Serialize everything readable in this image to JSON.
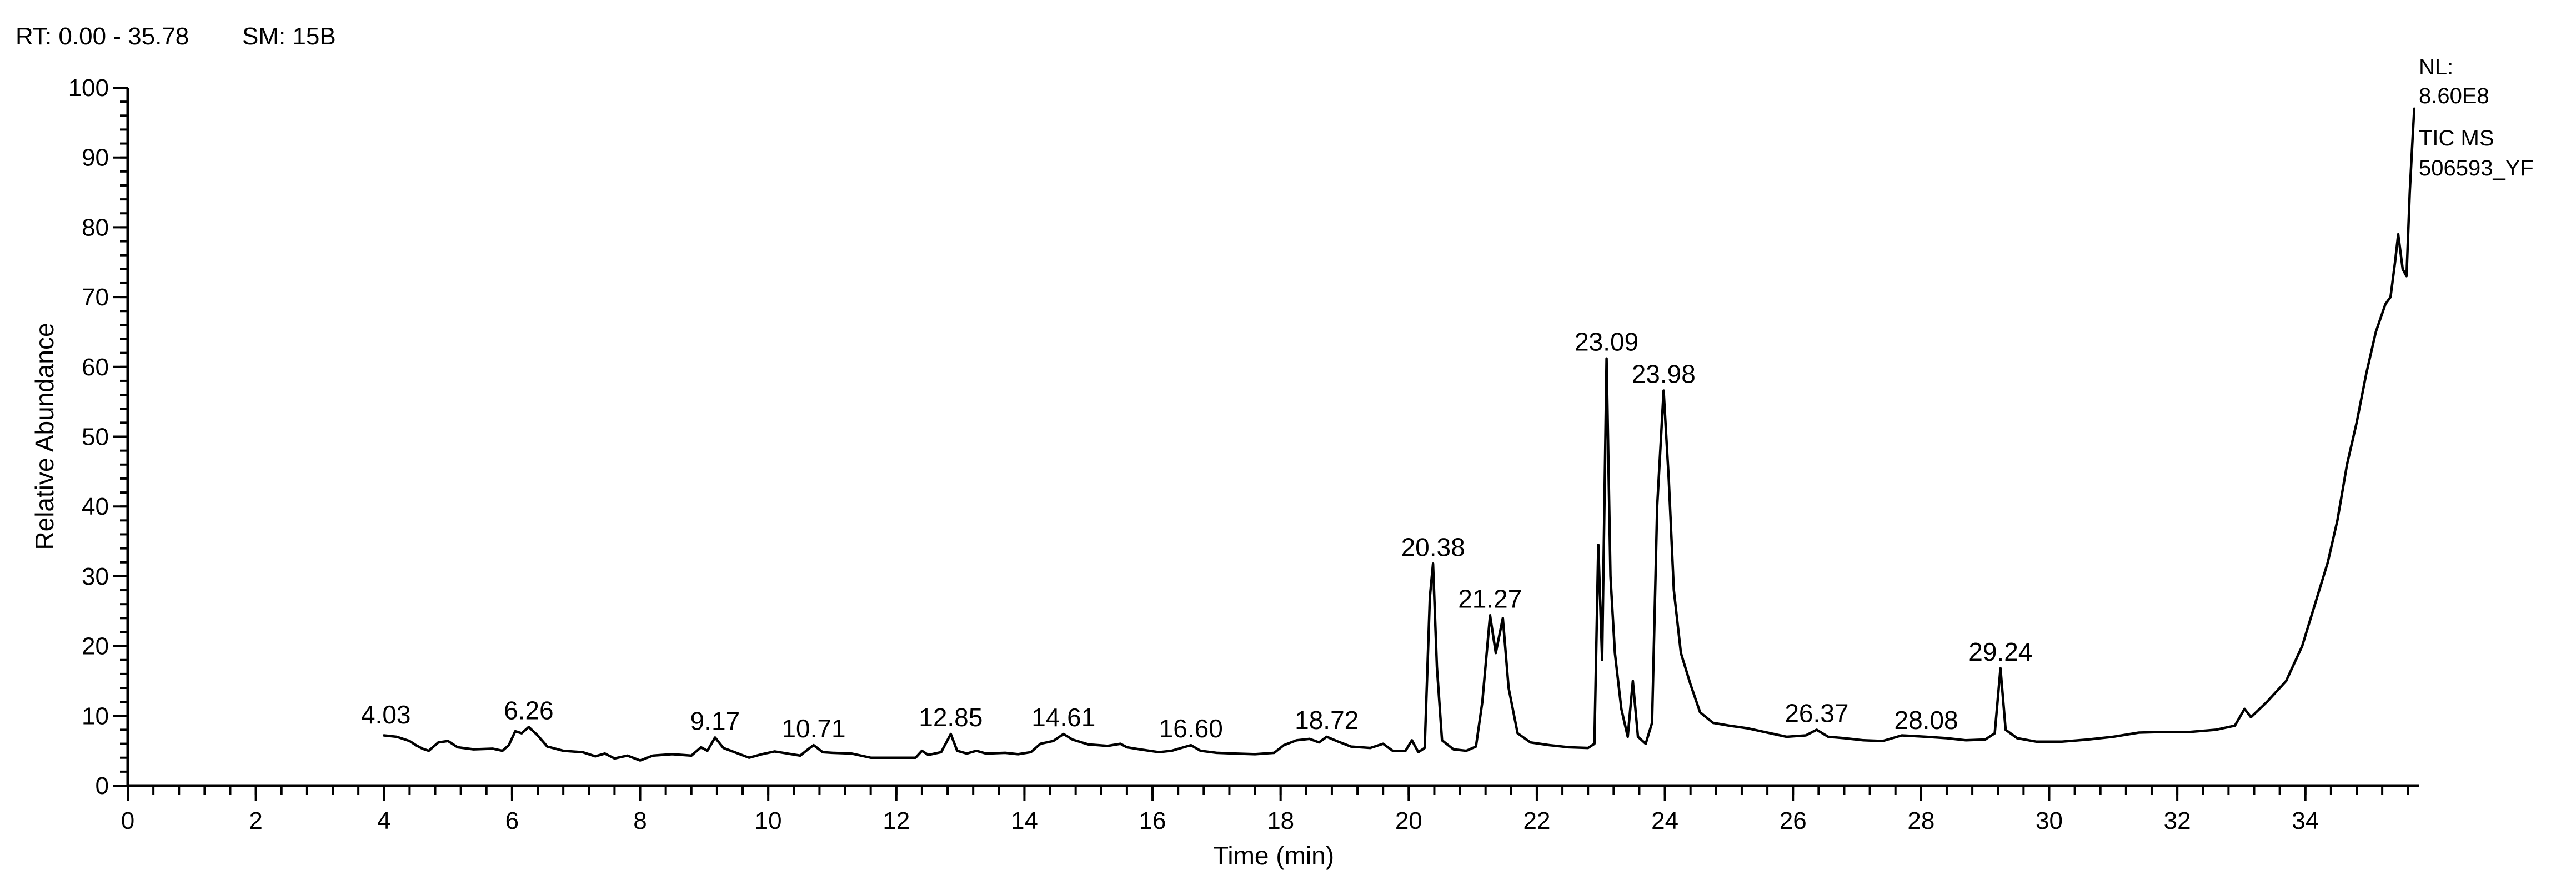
{
  "header": {
    "rt_range": "RT: 0.00 - 35.78",
    "smoothing": "SM: 15B"
  },
  "side_notes": [
    "NL:",
    "8.60E8",
    "TIC MS",
    "506593_YF"
  ],
  "chart_data": {
    "type": "line",
    "title": "",
    "xlabel": "Time (min)",
    "ylabel": "Relative Abundance",
    "xlim": [
      0,
      35.78
    ],
    "ylim": [
      0,
      100
    ],
    "x_major_ticks": [
      0,
      2,
      4,
      6,
      8,
      10,
      12,
      14,
      16,
      18,
      20,
      22,
      24,
      26,
      28,
      30,
      32,
      34
    ],
    "x_minor_step": 0.4,
    "y_major_ticks": [
      0,
      10,
      20,
      30,
      40,
      50,
      60,
      70,
      80,
      90,
      100
    ],
    "y_minor_step": 2,
    "grid": false,
    "legend": "none",
    "peak_labels": [
      {
        "text": "4.03",
        "x": 4.03,
        "y": 7.8
      },
      {
        "text": "6.26",
        "x": 6.26,
        "y": 8.4
      },
      {
        "text": "9.17",
        "x": 9.17,
        "y": 6.9
      },
      {
        "text": "10.71",
        "x": 10.71,
        "y": 5.8
      },
      {
        "text": "12.85",
        "x": 12.85,
        "y": 7.4
      },
      {
        "text": "14.61",
        "x": 14.61,
        "y": 7.4
      },
      {
        "text": "16.60",
        "x": 16.6,
        "y": 5.8
      },
      {
        "text": "18.72",
        "x": 18.72,
        "y": 7.0
      },
      {
        "text": "20.38",
        "x": 20.38,
        "y": 31.8
      },
      {
        "text": "21.27",
        "x": 21.27,
        "y": 24.4
      },
      {
        "text": "23.09",
        "x": 23.09,
        "y": 61.2
      },
      {
        "text": "23.98",
        "x": 23.98,
        "y": 56.6
      },
      {
        "text": "26.37",
        "x": 26.37,
        "y": 8.0
      },
      {
        "text": "28.08",
        "x": 28.08,
        "y": 7.0
      },
      {
        "text": "29.24",
        "x": 29.24,
        "y": 16.8
      }
    ],
    "series": [
      {
        "points": [
          [
            4.0,
            7.2
          ],
          [
            4.2,
            7.0
          ],
          [
            4.4,
            6.4
          ],
          [
            4.5,
            5.8
          ],
          [
            4.6,
            5.3
          ],
          [
            4.7,
            5.0
          ],
          [
            4.85,
            6.2
          ],
          [
            5.0,
            6.4
          ],
          [
            5.15,
            5.5
          ],
          [
            5.4,
            5.2
          ],
          [
            5.7,
            5.3
          ],
          [
            5.85,
            5.0
          ],
          [
            5.95,
            5.8
          ],
          [
            6.05,
            7.8
          ],
          [
            6.15,
            7.5
          ],
          [
            6.26,
            8.4
          ],
          [
            6.4,
            7.2
          ],
          [
            6.55,
            5.6
          ],
          [
            6.8,
            5.0
          ],
          [
            7.1,
            4.8
          ],
          [
            7.3,
            4.2
          ],
          [
            7.45,
            4.6
          ],
          [
            7.6,
            3.9
          ],
          [
            7.8,
            4.3
          ],
          [
            8.0,
            3.6
          ],
          [
            8.2,
            4.3
          ],
          [
            8.5,
            4.5
          ],
          [
            8.8,
            4.3
          ],
          [
            8.95,
            5.5
          ],
          [
            9.05,
            5.0
          ],
          [
            9.17,
            6.9
          ],
          [
            9.3,
            5.4
          ],
          [
            9.5,
            4.7
          ],
          [
            9.7,
            4.0
          ],
          [
            9.9,
            4.5
          ],
          [
            10.1,
            4.9
          ],
          [
            10.3,
            4.6
          ],
          [
            10.5,
            4.3
          ],
          [
            10.62,
            5.2
          ],
          [
            10.71,
            5.8
          ],
          [
            10.85,
            4.8
          ],
          [
            11.0,
            4.7
          ],
          [
            11.3,
            4.6
          ],
          [
            11.6,
            4.0
          ],
          [
            12.0,
            4.0
          ],
          [
            12.3,
            4.0
          ],
          [
            12.4,
            5.0
          ],
          [
            12.5,
            4.4
          ],
          [
            12.7,
            4.8
          ],
          [
            12.85,
            7.4
          ],
          [
            12.95,
            5.0
          ],
          [
            13.1,
            4.6
          ],
          [
            13.25,
            5.0
          ],
          [
            13.4,
            4.6
          ],
          [
            13.7,
            4.7
          ],
          [
            13.9,
            4.5
          ],
          [
            14.1,
            4.8
          ],
          [
            14.25,
            6.0
          ],
          [
            14.45,
            6.4
          ],
          [
            14.61,
            7.4
          ],
          [
            14.75,
            6.6
          ],
          [
            15.0,
            5.9
          ],
          [
            15.3,
            5.7
          ],
          [
            15.5,
            6.0
          ],
          [
            15.6,
            5.5
          ],
          [
            15.8,
            5.2
          ],
          [
            16.1,
            4.8
          ],
          [
            16.3,
            5.0
          ],
          [
            16.45,
            5.4
          ],
          [
            16.6,
            5.8
          ],
          [
            16.75,
            5.0
          ],
          [
            17.0,
            4.7
          ],
          [
            17.3,
            4.6
          ],
          [
            17.6,
            4.5
          ],
          [
            17.9,
            4.7
          ],
          [
            18.05,
            5.8
          ],
          [
            18.25,
            6.5
          ],
          [
            18.45,
            6.7
          ],
          [
            18.6,
            6.2
          ],
          [
            18.72,
            7.0
          ],
          [
            18.9,
            6.3
          ],
          [
            19.1,
            5.6
          ],
          [
            19.4,
            5.4
          ],
          [
            19.6,
            6.0
          ],
          [
            19.75,
            5.0
          ],
          [
            19.95,
            5.0
          ],
          [
            20.05,
            6.5
          ],
          [
            20.15,
            4.8
          ],
          [
            20.25,
            5.4
          ],
          [
            20.33,
            27.0
          ],
          [
            20.38,
            31.8
          ],
          [
            20.44,
            17.0
          ],
          [
            20.52,
            6.5
          ],
          [
            20.7,
            5.2
          ],
          [
            20.9,
            5.0
          ],
          [
            21.05,
            5.6
          ],
          [
            21.15,
            12.0
          ],
          [
            21.27,
            24.4
          ],
          [
            21.36,
            19.0
          ],
          [
            21.47,
            24.0
          ],
          [
            21.56,
            14.0
          ],
          [
            21.7,
            7.5
          ],
          [
            21.9,
            6.2
          ],
          [
            22.2,
            5.8
          ],
          [
            22.5,
            5.5
          ],
          [
            22.8,
            5.4
          ],
          [
            22.9,
            6.0
          ],
          [
            22.96,
            34.5
          ],
          [
            23.02,
            18.0
          ],
          [
            23.09,
            61.2
          ],
          [
            23.15,
            30.0
          ],
          [
            23.22,
            19.0
          ],
          [
            23.32,
            11.0
          ],
          [
            23.42,
            7.0
          ],
          [
            23.5,
            15.0
          ],
          [
            23.58,
            7.0
          ],
          [
            23.7,
            6.0
          ],
          [
            23.8,
            9.0
          ],
          [
            23.88,
            40.0
          ],
          [
            23.98,
            56.6
          ],
          [
            24.06,
            44.0
          ],
          [
            24.14,
            28.0
          ],
          [
            24.25,
            19.0
          ],
          [
            24.4,
            14.5
          ],
          [
            24.55,
            10.5
          ],
          [
            24.75,
            9.0
          ],
          [
            25.0,
            8.6
          ],
          [
            25.3,
            8.2
          ],
          [
            25.6,
            7.6
          ],
          [
            25.9,
            7.0
          ],
          [
            26.2,
            7.2
          ],
          [
            26.37,
            8.0
          ],
          [
            26.55,
            7.0
          ],
          [
            26.8,
            6.8
          ],
          [
            27.1,
            6.5
          ],
          [
            27.4,
            6.4
          ],
          [
            27.7,
            7.2
          ],
          [
            28.08,
            7.0
          ],
          [
            28.4,
            6.8
          ],
          [
            28.7,
            6.5
          ],
          [
            29.0,
            6.6
          ],
          [
            29.15,
            7.5
          ],
          [
            29.24,
            16.8
          ],
          [
            29.32,
            8.0
          ],
          [
            29.5,
            6.8
          ],
          [
            29.8,
            6.3
          ],
          [
            30.2,
            6.3
          ],
          [
            30.6,
            6.6
          ],
          [
            31.0,
            7.0
          ],
          [
            31.4,
            7.6
          ],
          [
            31.8,
            7.7
          ],
          [
            32.2,
            7.7
          ],
          [
            32.6,
            8.0
          ],
          [
            32.9,
            8.6
          ],
          [
            33.05,
            11.0
          ],
          [
            33.15,
            9.8
          ],
          [
            33.4,
            12.0
          ],
          [
            33.7,
            15.0
          ],
          [
            33.95,
            20.0
          ],
          [
            34.15,
            26.0
          ],
          [
            34.35,
            32.0
          ],
          [
            34.5,
            38.0
          ],
          [
            34.65,
            46.0
          ],
          [
            34.8,
            52.0
          ],
          [
            34.95,
            59.0
          ],
          [
            35.1,
            65.0
          ],
          [
            35.25,
            69.0
          ],
          [
            35.33,
            70.0
          ],
          [
            35.4,
            75.0
          ],
          [
            35.45,
            79.0
          ],
          [
            35.52,
            74.0
          ],
          [
            35.58,
            73.0
          ],
          [
            35.63,
            85.0
          ],
          [
            35.67,
            92.0
          ],
          [
            35.7,
            97.0
          ]
        ]
      }
    ]
  }
}
